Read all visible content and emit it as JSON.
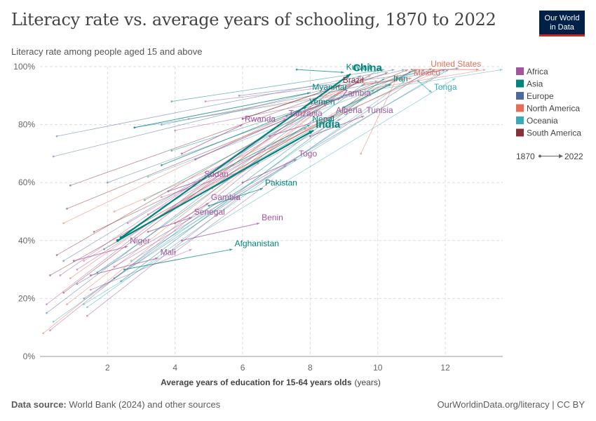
{
  "header": {
    "title": "Literacy rate vs. average years of schooling, 1870 to 2022",
    "subtitle": "Literacy rate among people aged 15 and above",
    "logo_line1": "Our World",
    "logo_line2": "in Data"
  },
  "footer": {
    "source_label": "Data source:",
    "source_text": "World Bank (2024) and other sources",
    "url": "OurWorldinData.org/literacy | CC BY"
  },
  "chart_data": {
    "type": "scatter",
    "title": "Literacy rate vs. average years of schooling, 1870 to 2022",
    "subtitle": "Literacy rate among people aged 15 and above",
    "xlabel": "Average years of education for 15-64 years olds",
    "xlabel_unit": "(years)",
    "xlim": [
      0,
      13.7
    ],
    "ylim": [
      0,
      100
    ],
    "x_ticks": [
      2,
      4,
      6,
      8,
      10,
      12
    ],
    "y_ticks": [
      0,
      20,
      40,
      60,
      80,
      100
    ],
    "y_tick_labels": [
      "0%",
      "20%",
      "40%",
      "60%",
      "80%",
      "100%"
    ],
    "grid": true,
    "legend_position": "right",
    "legend": [
      {
        "name": "Africa",
        "color": "#a2559c"
      },
      {
        "name": "Asia",
        "color": "#00847e"
      },
      {
        "name": "Europe",
        "color": "#4c6a9c"
      },
      {
        "name": "North America",
        "color": "#e56e5a"
      },
      {
        "name": "Oceania",
        "color": "#38aaba"
      },
      {
        "name": "South America",
        "color": "#883039"
      }
    ],
    "time_legend": {
      "start": "1870",
      "end": "2022"
    },
    "labeled_countries": [
      {
        "name": "China",
        "region": "Asia",
        "start": [
          2.4,
          41
        ],
        "end": [
          9.2,
          97.5
        ],
        "bold": true
      },
      {
        "name": "India",
        "region": "Asia",
        "start": [
          2.3,
          40
        ],
        "end": [
          8.1,
          78
        ],
        "bold": true
      },
      {
        "name": "Kuwait",
        "region": "Asia",
        "start": [
          7.6,
          99
        ],
        "end": [
          9.0,
          98
        ]
      },
      {
        "name": "Myanmar",
        "region": "Asia",
        "start": [
          2.8,
          79
        ],
        "end": [
          8.0,
          91
        ]
      },
      {
        "name": "Yemen",
        "region": "Asia",
        "start": [
          3.6,
          66
        ],
        "end": [
          7.9,
          86
        ]
      },
      {
        "name": "Nepal",
        "region": "Asia",
        "start": [
          5.0,
          62
        ],
        "end": [
          8.0,
          80
        ]
      },
      {
        "name": "Pakistan",
        "region": "Asia",
        "start": [
          5.0,
          52
        ],
        "end": [
          6.6,
          58
        ]
      },
      {
        "name": "Afghanistan",
        "region": "Asia",
        "start": [
          2.5,
          30
        ],
        "end": [
          5.7,
          37
        ]
      },
      {
        "name": "Iran",
        "region": "Asia",
        "start": [
          9.0,
          86
        ],
        "end": [
          10.4,
          94
        ]
      },
      {
        "name": "Brazil",
        "region": "South America",
        "start": [
          6.0,
          82
        ],
        "end": [
          8.9,
          93.5
        ]
      },
      {
        "name": "Mexico",
        "region": "North America",
        "start": [
          9.6,
          94
        ],
        "end": [
          11.0,
          96
        ]
      },
      {
        "name": "United States",
        "region": "North America",
        "start": [
          11.0,
          99
        ],
        "end": [
          13.0,
          99
        ]
      },
      {
        "name": "Tonga",
        "region": "Oceania",
        "start": [
          11.2,
          95
        ],
        "end": [
          11.6,
          91
        ]
      },
      {
        "name": "Rwanda",
        "region": "Africa",
        "start": [
          4.2,
          70
        ],
        "end": [
          6.0,
          80
        ]
      },
      {
        "name": "Tanzania",
        "region": "Africa",
        "start": [
          4.6,
          68
        ],
        "end": [
          7.3,
          82
        ]
      },
      {
        "name": "Zambia",
        "region": "Africa",
        "start": [
          7.3,
          83
        ],
        "end": [
          8.9,
          89
        ]
      },
      {
        "name": "Algeria",
        "region": "Africa",
        "start": [
          6.8,
          76
        ],
        "end": [
          8.7,
          83
        ]
      },
      {
        "name": "Tunisia",
        "region": "Africa",
        "start": [
          8.0,
          76
        ],
        "end": [
          9.6,
          83
        ]
      },
      {
        "name": "Togo",
        "region": "Africa",
        "start": [
          6.0,
          60
        ],
        "end": [
          7.6,
          68
        ]
      },
      {
        "name": "Sudan",
        "region": "Africa",
        "start": [
          3.8,
          57
        ],
        "end": [
          4.8,
          61
        ]
      },
      {
        "name": "Gambia",
        "region": "Africa",
        "start": [
          4.0,
          46
        ],
        "end": [
          5.0,
          53
        ]
      },
      {
        "name": "Senegal",
        "region": "Africa",
        "start": [
          3.2,
          43
        ],
        "end": [
          4.5,
          48
        ]
      },
      {
        "name": "Benin",
        "region": "Africa",
        "start": [
          4.2,
          40
        ],
        "end": [
          6.5,
          46
        ]
      },
      {
        "name": "Niger",
        "region": "Africa",
        "start": [
          1.0,
          33
        ],
        "end": [
          2.6,
          38
        ]
      },
      {
        "name": "Mali",
        "region": "Africa",
        "start": [
          1.5,
          28
        ],
        "end": [
          3.5,
          34
        ]
      }
    ],
    "other_countries": [
      {
        "region": "Europe",
        "start": [
          0.5,
          76
        ],
        "end": [
          10.5,
          99
        ]
      },
      {
        "region": "Europe",
        "start": [
          0.4,
          69
        ],
        "end": [
          10.8,
          99
        ]
      },
      {
        "region": "Europe",
        "start": [
          0.2,
          15
        ],
        "end": [
          9.5,
          97
        ]
      },
      {
        "region": "Europe",
        "start": [
          1.3,
          20
        ],
        "end": [
          11.6,
          99.5
        ]
      },
      {
        "region": "Europe",
        "start": [
          3.6,
          80
        ],
        "end": [
          12.0,
          99
        ]
      },
      {
        "region": "Europe",
        "start": [
          2.0,
          60
        ],
        "end": [
          11.2,
          99
        ]
      },
      {
        "region": "Europe",
        "start": [
          0.7,
          33
        ],
        "end": [
          10.1,
          99.5
        ]
      },
      {
        "region": "Europe",
        "start": [
          1.1,
          25
        ],
        "end": [
          12.1,
          99
        ]
      },
      {
        "region": "Europe",
        "start": [
          5.9,
          90
        ],
        "end": [
          12.4,
          99.5
        ]
      },
      {
        "region": "South America",
        "start": [
          0.8,
          51
        ],
        "end": [
          10.9,
          99
        ]
      },
      {
        "region": "South America",
        "start": [
          0.5,
          35
        ],
        "end": [
          9.6,
          96
        ]
      },
      {
        "region": "South America",
        "start": [
          0.9,
          59
        ],
        "end": [
          10.3,
          98
        ]
      },
      {
        "region": "South America",
        "start": [
          0.3,
          28
        ],
        "end": [
          11.0,
          98.5
        ]
      },
      {
        "region": "South America",
        "start": [
          0.7,
          22
        ],
        "end": [
          8.9,
          94
        ]
      },
      {
        "region": "South America",
        "start": [
          1.6,
          43
        ],
        "end": [
          11.7,
          99
        ]
      },
      {
        "region": "North America",
        "start": [
          0.7,
          46
        ],
        "end": [
          9.8,
          97
        ]
      },
      {
        "region": "North America",
        "start": [
          0.1,
          8
        ],
        "end": [
          9.2,
          94
        ]
      },
      {
        "region": "North America",
        "start": [
          1.3,
          33
        ],
        "end": [
          10.6,
          97
        ]
      },
      {
        "region": "North America",
        "start": [
          0.8,
          18
        ],
        "end": [
          9.0,
          92
        ]
      },
      {
        "region": "North America",
        "start": [
          2.2,
          50
        ],
        "end": [
          11.9,
          99
        ]
      },
      {
        "region": "North America",
        "start": [
          4.4,
          82
        ],
        "end": [
          13.2,
          99
        ]
      },
      {
        "region": "North America",
        "start": [
          0.9,
          27
        ],
        "end": [
          8.4,
          88
        ]
      },
      {
        "region": "North America",
        "start": [
          9.5,
          70
        ],
        "end": [
          10.6,
          97
        ]
      },
      {
        "region": "Oceania",
        "start": [
          1.3,
          18
        ],
        "end": [
          12.3,
          96
        ]
      },
      {
        "region": "Oceania",
        "start": [
          2.8,
          79
        ],
        "end": [
          13.7,
          99
        ]
      },
      {
        "region": "Oceania",
        "start": [
          1.4,
          17
        ],
        "end": [
          10.8,
          95
        ]
      },
      {
        "region": "Oceania",
        "start": [
          3.2,
          62
        ],
        "end": [
          10.3,
          94
        ]
      },
      {
        "region": "Oceania",
        "start": [
          0.4,
          12
        ],
        "end": [
          9.4,
          86
        ]
      },
      {
        "region": "Oceania",
        "start": [
          2.7,
          33
        ],
        "end": [
          12.0,
          99
        ]
      },
      {
        "region": "Asia",
        "start": [
          1.9,
          37
        ],
        "end": [
          11.1,
          99
        ]
      },
      {
        "region": "Asia",
        "start": [
          3.9,
          88
        ],
        "end": [
          10.2,
          99
        ]
      },
      {
        "region": "Asia",
        "start": [
          1.7,
          29
        ],
        "end": [
          9.6,
          94
        ]
      },
      {
        "region": "Asia",
        "start": [
          2.4,
          26
        ],
        "end": [
          9.9,
          92
        ]
      },
      {
        "region": "Asia",
        "start": [
          3.1,
          54
        ],
        "end": [
          9.0,
          90
        ]
      },
      {
        "region": "Asia",
        "start": [
          3.9,
          71
        ],
        "end": [
          11.4,
          99
        ]
      },
      {
        "region": "Asia",
        "start": [
          2.2,
          27
        ],
        "end": [
          10.2,
          96
        ]
      },
      {
        "region": "Africa",
        "start": [
          0.2,
          18
        ],
        "end": [
          7.1,
          80
        ]
      },
      {
        "region": "Africa",
        "start": [
          0.6,
          28
        ],
        "end": [
          8.1,
          88
        ]
      },
      {
        "region": "Africa",
        "start": [
          1.1,
          30
        ],
        "end": [
          6.7,
          72
        ]
      },
      {
        "region": "Africa",
        "start": [
          2.6,
          46
        ],
        "end": [
          8.5,
          87
        ]
      },
      {
        "region": "Africa",
        "start": [
          3.6,
          55
        ],
        "end": [
          6.0,
          64
        ]
      },
      {
        "region": "Africa",
        "start": [
          4.0,
          78
        ],
        "end": [
          9.3,
          90
        ]
      },
      {
        "region": "Africa",
        "start": [
          0.3,
          9
        ],
        "end": [
          6.5,
          67
        ]
      },
      {
        "region": "Africa",
        "start": [
          1.4,
          14
        ],
        "end": [
          5.9,
          55
        ]
      },
      {
        "region": "Africa",
        "start": [
          3.2,
          49
        ],
        "end": [
          7.9,
          79
        ]
      },
      {
        "region": "Africa",
        "start": [
          4.0,
          36
        ],
        "end": [
          6.9,
          61
        ]
      },
      {
        "region": "Africa",
        "start": [
          5.1,
          58
        ],
        "end": [
          8.9,
          82
        ]
      },
      {
        "region": "Africa",
        "start": [
          1.5,
          23
        ],
        "end": [
          4.5,
          37
        ]
      },
      {
        "region": "Africa",
        "start": [
          2.2,
          31
        ],
        "end": [
          7.3,
          66
        ]
      },
      {
        "region": "Africa",
        "start": [
          4.9,
          88
        ],
        "end": [
          10.0,
          95
        ]
      }
    ]
  }
}
